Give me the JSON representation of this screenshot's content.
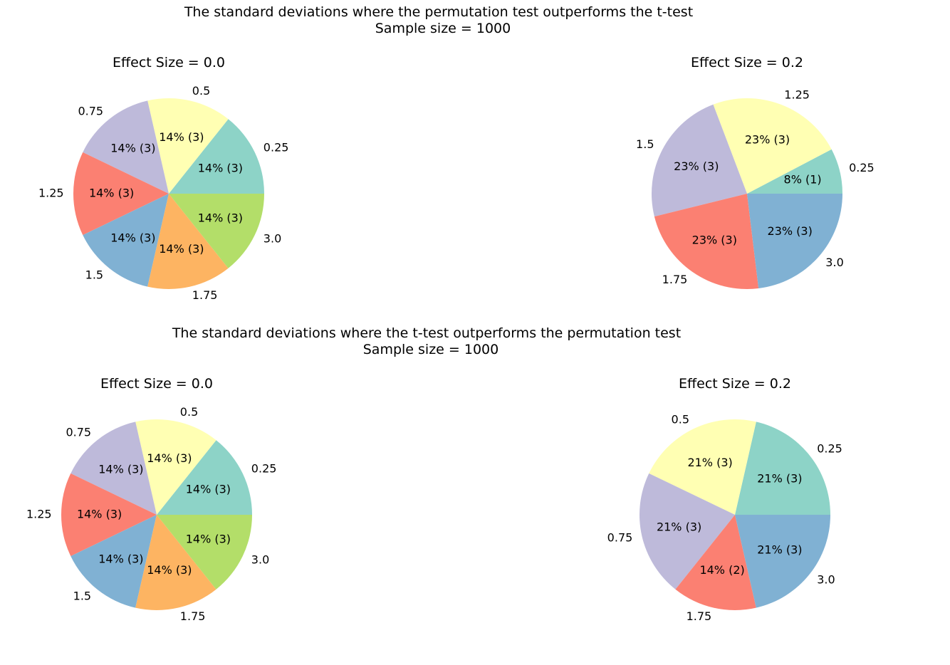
{
  "chart_data": [
    {
      "type": "pie",
      "group_title_line1": "The standard deviations where the permutation test outperforms the t-test",
      "group_title_line2": "Sample size = 1000",
      "title": "Effect Size =  0.0",
      "labels": [
        "0.25",
        "0.5",
        "0.75",
        "1.25",
        "1.5",
        "1.75",
        "3.0"
      ],
      "values": [
        3,
        3,
        3,
        3,
        3,
        3,
        3
      ],
      "autopct": [
        "14% (3)",
        "14% (3)",
        "14% (3)",
        "14% (3)",
        "14% (3)",
        "14% (3)",
        "14% (3)"
      ],
      "colors": [
        "#8dd3c7",
        "#ffffb3",
        "#bebada",
        "#fb8072",
        "#80b1d3",
        "#fdb462",
        "#b3de69"
      ]
    },
    {
      "type": "pie",
      "title": "Effect Size =  0.2",
      "labels": [
        "0.25",
        "1.25",
        "1.5",
        "1.75",
        "3.0"
      ],
      "values": [
        1,
        3,
        3,
        3,
        3
      ],
      "autopct": [
        "8% (1)",
        "23% (3)",
        "23% (3)",
        "23% (3)",
        "23% (3)"
      ],
      "colors": [
        "#8dd3c7",
        "#ffffb3",
        "#bebada",
        "#fb8072",
        "#80b1d3"
      ]
    },
    {
      "type": "pie",
      "group_title_line1": "The standard deviations where the t-test outperforms the permutation test",
      "group_title_line2": "Sample size = 1000",
      "title": "Effect Size =  0.0",
      "labels": [
        "0.25",
        "0.5",
        "0.75",
        "1.25",
        "1.5",
        "1.75",
        "3.0"
      ],
      "values": [
        3,
        3,
        3,
        3,
        3,
        3,
        3
      ],
      "autopct": [
        "14% (3)",
        "14% (3)",
        "14% (3)",
        "14% (3)",
        "14% (3)",
        "14% (3)",
        "14% (3)"
      ],
      "colors": [
        "#8dd3c7",
        "#ffffb3",
        "#bebada",
        "#fb8072",
        "#80b1d3",
        "#fdb462",
        "#b3de69"
      ]
    },
    {
      "type": "pie",
      "title": "Effect Size =  0.2",
      "labels": [
        "0.25",
        "0.5",
        "0.75",
        "1.75",
        "3.0"
      ],
      "values": [
        3,
        3,
        3,
        2,
        3
      ],
      "autopct": [
        "21% (3)",
        "21% (3)",
        "21% (3)",
        "14% (2)",
        "21% (3)"
      ],
      "colors": [
        "#8dd3c7",
        "#ffffb3",
        "#bebada",
        "#fb8072",
        "#80b1d3"
      ]
    }
  ]
}
